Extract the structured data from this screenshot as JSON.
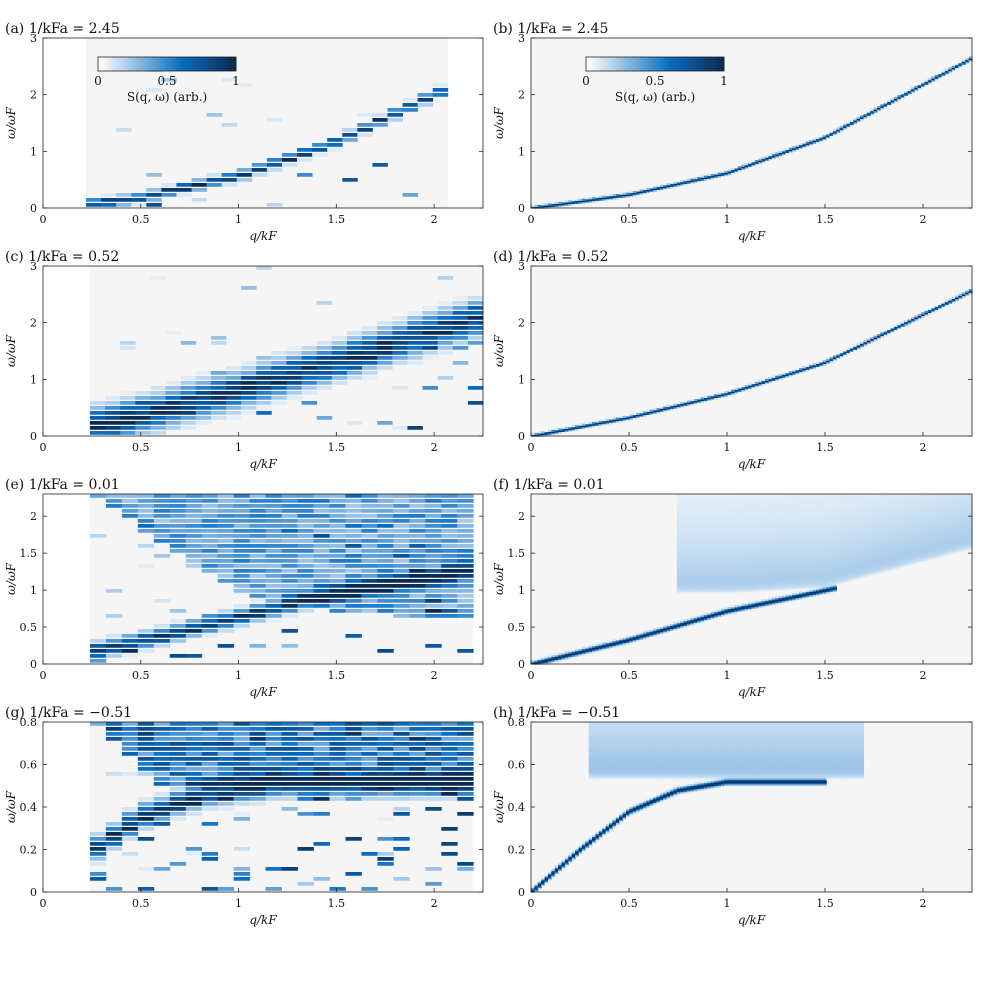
{
  "colors": {
    "background": "#f5f5f5",
    "low": "#ffffff",
    "mid": "#0a6ec2",
    "high": "#0a2a50"
  },
  "colorbar": {
    "label": "S(q, ω) (arb.)",
    "ticks": [
      "0",
      "0.5",
      "1"
    ]
  },
  "chart_data": [
    {
      "id": "a",
      "type": "heatmap",
      "title": "(a) 1/kFa = 2.45",
      "xlabel": "q/kF",
      "ylabel": "ω/ωF",
      "xlim": [
        0,
        2.25
      ],
      "ylim": [
        0,
        3
      ],
      "xticks": [
        0,
        0.5,
        1,
        1.5,
        2
      ],
      "yticks": [
        0,
        1,
        2,
        3
      ],
      "kind": "noisy",
      "colorbar": true,
      "qmin": 0.22,
      "qmax": 2.07,
      "nq": 24,
      "dispersion": [
        [
          0.22,
          0.05
        ],
        [
          0.5,
          0.17
        ],
        [
          1.0,
          0.55
        ],
        [
          1.5,
          1.15
        ],
        [
          2.07,
          2.1
        ]
      ],
      "width": 0.08,
      "continuum": 0.0,
      "onset": [],
      "background": 0.05
    },
    {
      "id": "b",
      "type": "heatmap",
      "title": "(b) 1/kFa = 2.45",
      "xlabel": "q/kF",
      "ylabel": "ω/ωF",
      "xlim": [
        0,
        2.25
      ],
      "ylim": [
        0,
        3
      ],
      "xticks": [
        0,
        0.5,
        1,
        1.5,
        2
      ],
      "yticks": [
        0,
        1,
        2,
        3
      ],
      "kind": "theory",
      "colorbar": true,
      "qmin": 0,
      "qmax": 2.25,
      "dispersion": [
        [
          0,
          0
        ],
        [
          0.5,
          0.24
        ],
        [
          1.0,
          0.62
        ],
        [
          1.5,
          1.25
        ],
        [
          2.25,
          2.65
        ]
      ],
      "width": 0.025,
      "continuum": 0.0,
      "onset": []
    },
    {
      "id": "c",
      "type": "heatmap",
      "title": "(c) 1/kFa = 0.52",
      "xlabel": "q/kF",
      "ylabel": "ω/ωF",
      "xlim": [
        0,
        2.25
      ],
      "ylim": [
        0,
        3
      ],
      "xticks": [
        0,
        0.5,
        1,
        1.5,
        2
      ],
      "yticks": [
        0,
        1,
        2,
        3
      ],
      "kind": "noisy",
      "colorbar": false,
      "qmin": 0.24,
      "qmax": 2.25,
      "nq": 26,
      "dispersion": [
        [
          0.24,
          0.15
        ],
        [
          0.5,
          0.35
        ],
        [
          1.0,
          0.8
        ],
        [
          1.5,
          1.3
        ],
        [
          2.25,
          2.1
        ]
      ],
      "width": 0.28,
      "continuum": 0.0,
      "onset": [],
      "background": 0.08
    },
    {
      "id": "d",
      "type": "heatmap",
      "title": "(d) 1/kFa = 0.52",
      "xlabel": "q/kF",
      "ylabel": "ω/ωF",
      "xlim": [
        0,
        2.25
      ],
      "ylim": [
        0,
        3
      ],
      "xticks": [
        0,
        0.5,
        1,
        1.5,
        2
      ],
      "yticks": [
        0,
        1,
        2,
        3
      ],
      "kind": "theory",
      "colorbar": false,
      "qmin": 0,
      "qmax": 2.25,
      "dispersion": [
        [
          0,
          0
        ],
        [
          0.5,
          0.33
        ],
        [
          1.0,
          0.75
        ],
        [
          1.5,
          1.3
        ],
        [
          2.25,
          2.57
        ]
      ],
      "width": 0.025,
      "continuum": 0.0,
      "onset": []
    },
    {
      "id": "e",
      "type": "heatmap",
      "title": "(e) 1/kFa = 0.01",
      "xlabel": "q/kF",
      "ylabel": "ω/ωF",
      "xlim": [
        0,
        2.25
      ],
      "ylim": [
        0,
        2.3
      ],
      "xticks": [
        0,
        0.5,
        1,
        1.5,
        2
      ],
      "yticks": [
        0,
        0.5,
        1,
        1.5,
        2
      ],
      "kind": "noisy",
      "colorbar": false,
      "qmin": 0.24,
      "qmax": 2.2,
      "nq": 24,
      "dispersion": [
        [
          0.24,
          0.15
        ],
        [
          0.5,
          0.3
        ],
        [
          1.0,
          0.62
        ],
        [
          1.5,
          0.95
        ],
        [
          2.2,
          1.25
        ]
      ],
      "width": 0.1,
      "continuum": 0.55,
      "onset": [
        [
          0.24,
          2.3
        ],
        [
          1.0,
          0.95
        ],
        [
          1.5,
          0.7
        ],
        [
          2.2,
          0.6
        ]
      ],
      "background": 0.12
    },
    {
      "id": "f",
      "type": "heatmap",
      "title": "(f) 1/kFa = 0.01",
      "xlabel": "q/kF",
      "ylabel": "ω/ωF",
      "xlim": [
        0,
        2.25
      ],
      "ylim": [
        0,
        2.3
      ],
      "xticks": [
        0,
        0.5,
        1,
        1.5,
        2
      ],
      "yticks": [
        0,
        0.5,
        1,
        1.5,
        2
      ],
      "kind": "theory",
      "colorbar": false,
      "qmin": 0,
      "qmax": 2.25,
      "dispersion": [
        [
          0,
          0
        ],
        [
          0.5,
          0.33
        ],
        [
          1.0,
          0.72
        ],
        [
          1.5,
          1.0
        ],
        [
          1.55,
          1.03
        ]
      ],
      "width": 0.03,
      "continuum": 0.25,
      "onset": [
        [
          0.75,
          0.95
        ],
        [
          1.0,
          0.95
        ],
        [
          1.5,
          1.02
        ],
        [
          2.25,
          1.55
        ]
      ]
    },
    {
      "id": "g",
      "type": "heatmap",
      "title": "(g) 1/kFa = −0.51",
      "xlabel": "q/kF",
      "ylabel": "ω/ωF",
      "xlim": [
        0,
        2.25
      ],
      "ylim": [
        0,
        0.8
      ],
      "xticks": [
        0,
        0.5,
        1,
        1.5,
        2
      ],
      "yticks": [
        0,
        0.2,
        0.4,
        0.6,
        0.8
      ],
      "kind": "noisy",
      "colorbar": false,
      "qmin": 0.24,
      "qmax": 2.2,
      "nq": 24,
      "dispersion": [
        [
          0.24,
          0.18
        ],
        [
          0.5,
          0.35
        ],
        [
          0.8,
          0.45
        ],
        [
          1.2,
          0.5
        ],
        [
          2.2,
          0.5
        ]
      ],
      "width": 0.05,
      "continuum": 0.8,
      "onset": [
        [
          0.24,
          0.8
        ],
        [
          0.6,
          0.5
        ],
        [
          1.0,
          0.48
        ],
        [
          2.2,
          0.5
        ]
      ],
      "background": 0.18
    },
    {
      "id": "h",
      "type": "heatmap",
      "title": "(h) 1/kFa = −0.51",
      "xlabel": "q/kF",
      "ylabel": "ω/ωF",
      "xlim": [
        0,
        2.25
      ],
      "ylim": [
        0,
        0.8
      ],
      "xticks": [
        0,
        0.5,
        1,
        1.5,
        2
      ],
      "yticks": [
        0,
        0.2,
        0.4,
        0.6,
        0.8
      ],
      "kind": "theory",
      "colorbar": false,
      "qmin": 0,
      "qmax": 2.25,
      "dispersion": [
        [
          0,
          0
        ],
        [
          0.25,
          0.2
        ],
        [
          0.5,
          0.38
        ],
        [
          0.75,
          0.48
        ],
        [
          1.0,
          0.52
        ],
        [
          1.5,
          0.52
        ]
      ],
      "width": 0.012,
      "continuum": 0.3,
      "onset": [
        [
          0.3,
          0.53
        ],
        [
          1.7,
          0.53
        ]
      ]
    }
  ]
}
